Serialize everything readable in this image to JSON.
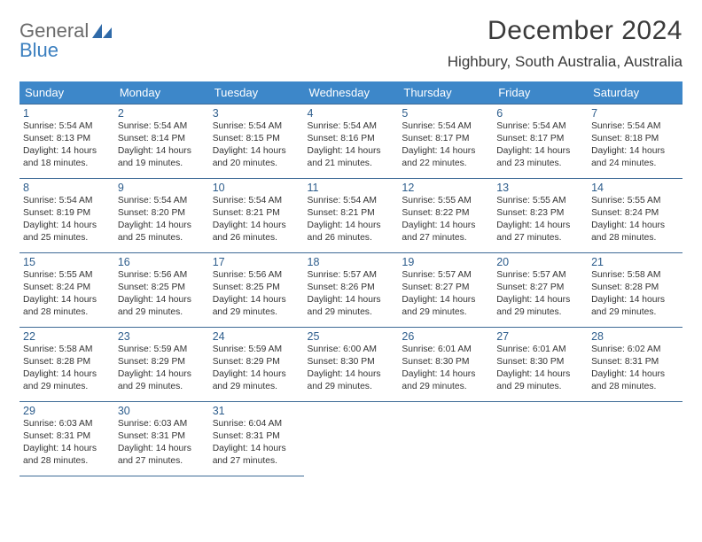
{
  "logo": {
    "word1": "General",
    "word2": "Blue"
  },
  "title": "December 2024",
  "location": "Highbury, South Australia, Australia",
  "headers": [
    "Sunday",
    "Monday",
    "Tuesday",
    "Wednesday",
    "Thursday",
    "Friday",
    "Saturday"
  ],
  "header_bg": "#3d87c9",
  "header_fg": "#ffffff",
  "cell_border": "#3d6a96",
  "daynum_color": "#2d5d8c",
  "weeks": [
    [
      {
        "n": "1",
        "sr": "5:54 AM",
        "ss": "8:13 PM",
        "dl": "14 hours and 18 minutes."
      },
      {
        "n": "2",
        "sr": "5:54 AM",
        "ss": "8:14 PM",
        "dl": "14 hours and 19 minutes."
      },
      {
        "n": "3",
        "sr": "5:54 AM",
        "ss": "8:15 PM",
        "dl": "14 hours and 20 minutes."
      },
      {
        "n": "4",
        "sr": "5:54 AM",
        "ss": "8:16 PM",
        "dl": "14 hours and 21 minutes."
      },
      {
        "n": "5",
        "sr": "5:54 AM",
        "ss": "8:17 PM",
        "dl": "14 hours and 22 minutes."
      },
      {
        "n": "6",
        "sr": "5:54 AM",
        "ss": "8:17 PM",
        "dl": "14 hours and 23 minutes."
      },
      {
        "n": "7",
        "sr": "5:54 AM",
        "ss": "8:18 PM",
        "dl": "14 hours and 24 minutes."
      }
    ],
    [
      {
        "n": "8",
        "sr": "5:54 AM",
        "ss": "8:19 PM",
        "dl": "14 hours and 25 minutes."
      },
      {
        "n": "9",
        "sr": "5:54 AM",
        "ss": "8:20 PM",
        "dl": "14 hours and 25 minutes."
      },
      {
        "n": "10",
        "sr": "5:54 AM",
        "ss": "8:21 PM",
        "dl": "14 hours and 26 minutes."
      },
      {
        "n": "11",
        "sr": "5:54 AM",
        "ss": "8:21 PM",
        "dl": "14 hours and 26 minutes."
      },
      {
        "n": "12",
        "sr": "5:55 AM",
        "ss": "8:22 PM",
        "dl": "14 hours and 27 minutes."
      },
      {
        "n": "13",
        "sr": "5:55 AM",
        "ss": "8:23 PM",
        "dl": "14 hours and 27 minutes."
      },
      {
        "n": "14",
        "sr": "5:55 AM",
        "ss": "8:24 PM",
        "dl": "14 hours and 28 minutes."
      }
    ],
    [
      {
        "n": "15",
        "sr": "5:55 AM",
        "ss": "8:24 PM",
        "dl": "14 hours and 28 minutes."
      },
      {
        "n": "16",
        "sr": "5:56 AM",
        "ss": "8:25 PM",
        "dl": "14 hours and 29 minutes."
      },
      {
        "n": "17",
        "sr": "5:56 AM",
        "ss": "8:25 PM",
        "dl": "14 hours and 29 minutes."
      },
      {
        "n": "18",
        "sr": "5:57 AM",
        "ss": "8:26 PM",
        "dl": "14 hours and 29 minutes."
      },
      {
        "n": "19",
        "sr": "5:57 AM",
        "ss": "8:27 PM",
        "dl": "14 hours and 29 minutes."
      },
      {
        "n": "20",
        "sr": "5:57 AM",
        "ss": "8:27 PM",
        "dl": "14 hours and 29 minutes."
      },
      {
        "n": "21",
        "sr": "5:58 AM",
        "ss": "8:28 PM",
        "dl": "14 hours and 29 minutes."
      }
    ],
    [
      {
        "n": "22",
        "sr": "5:58 AM",
        "ss": "8:28 PM",
        "dl": "14 hours and 29 minutes."
      },
      {
        "n": "23",
        "sr": "5:59 AM",
        "ss": "8:29 PM",
        "dl": "14 hours and 29 minutes."
      },
      {
        "n": "24",
        "sr": "5:59 AM",
        "ss": "8:29 PM",
        "dl": "14 hours and 29 minutes."
      },
      {
        "n": "25",
        "sr": "6:00 AM",
        "ss": "8:30 PM",
        "dl": "14 hours and 29 minutes."
      },
      {
        "n": "26",
        "sr": "6:01 AM",
        "ss": "8:30 PM",
        "dl": "14 hours and 29 minutes."
      },
      {
        "n": "27",
        "sr": "6:01 AM",
        "ss": "8:30 PM",
        "dl": "14 hours and 29 minutes."
      },
      {
        "n": "28",
        "sr": "6:02 AM",
        "ss": "8:31 PM",
        "dl": "14 hours and 28 minutes."
      }
    ],
    [
      {
        "n": "29",
        "sr": "6:03 AM",
        "ss": "8:31 PM",
        "dl": "14 hours and 28 minutes."
      },
      {
        "n": "30",
        "sr": "6:03 AM",
        "ss": "8:31 PM",
        "dl": "14 hours and 27 minutes."
      },
      {
        "n": "31",
        "sr": "6:04 AM",
        "ss": "8:31 PM",
        "dl": "14 hours and 27 minutes."
      },
      null,
      null,
      null,
      null
    ]
  ],
  "labels": {
    "sunrise": "Sunrise:",
    "sunset": "Sunset:",
    "daylight": "Daylight:"
  }
}
